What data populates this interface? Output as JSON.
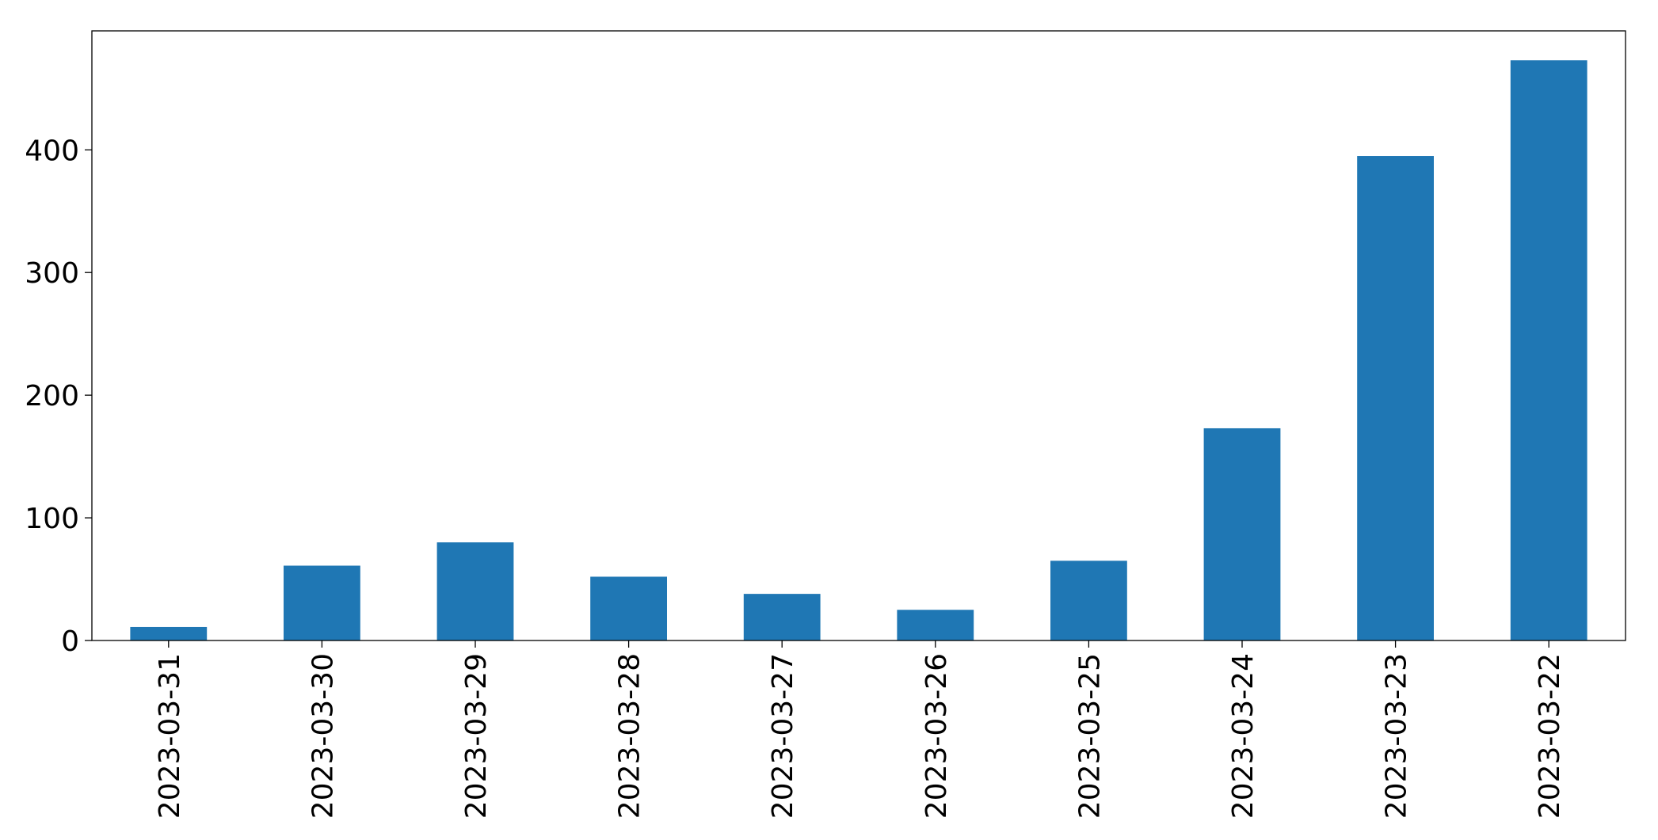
{
  "chart_data": {
    "type": "bar",
    "categories": [
      "2023-03-31",
      "2023-03-30",
      "2023-03-29",
      "2023-03-28",
      "2023-03-27",
      "2023-03-26",
      "2023-03-25",
      "2023-03-24",
      "2023-03-23",
      "2023-03-22"
    ],
    "values": [
      11,
      61,
      80,
      52,
      38,
      25,
      65,
      173,
      395,
      473
    ],
    "color": "#1f77b4",
    "ylim": [
      0,
      497
    ],
    "yticks": [
      0,
      100,
      200,
      300,
      400
    ],
    "grid": false
  }
}
